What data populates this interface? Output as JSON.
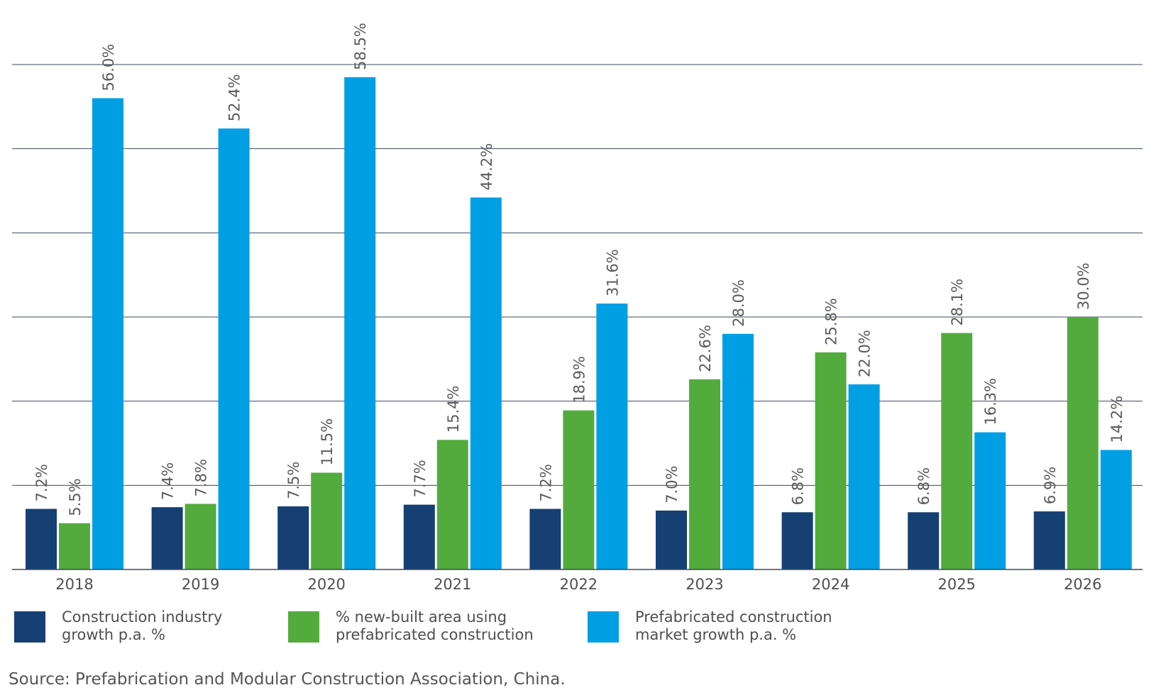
{
  "chart_data": {
    "type": "bar",
    "title": "",
    "xlabel": "",
    "ylabel": "",
    "ylim": [
      0,
      60
    ],
    "grid": true,
    "gridline_step": 10,
    "legend_position": "bottom",
    "categories": [
      "2018",
      "2019",
      "2020",
      "2021",
      "2022",
      "2023",
      "2024",
      "2025",
      "2026"
    ],
    "series": [
      {
        "name": "Construction industry growth p.a. %",
        "color": "#163f73",
        "values": [
          7.2,
          7.4,
          7.5,
          7.7,
          7.2,
          7.0,
          6.8,
          6.8,
          6.9
        ],
        "labels": [
          "7.2%",
          "7.4%",
          "7.5%",
          "7.7%",
          "7.2%",
          "7.0%",
          "6.8%",
          "6.8%",
          "6.9%"
        ]
      },
      {
        "name": "% new-built area using prefabricated construction",
        "color": "#54ab3d",
        "values": [
          5.5,
          7.8,
          11.5,
          15.4,
          18.9,
          22.6,
          25.8,
          28.1,
          30.0
        ],
        "labels": [
          "5.5%",
          "7.8%",
          "11.5%",
          "15.4%",
          "18.9%",
          "22.6%",
          "25.8%",
          "28.1%",
          "30.0%"
        ]
      },
      {
        "name": "Prefabricated construction market growth p.a. %",
        "color": "#009fe3",
        "values": [
          56.0,
          52.4,
          58.5,
          44.2,
          31.6,
          28.0,
          22.0,
          16.3,
          14.2
        ],
        "labels": [
          "56.0%",
          "52.4%",
          "58.5%",
          "44.2%",
          "31.6%",
          "28.0%",
          "22.0%",
          "16.3%",
          "14.2%"
        ]
      }
    ]
  },
  "legend": [
    {
      "label": "Construction industry\ngrowth p.a. %",
      "color": "#163f73"
    },
    {
      "label": "% new-built area using\nprefabricated construction",
      "color": "#54ab3d"
    },
    {
      "label": "Prefabricated construction\nmarket growth p.a. %",
      "color": "#009fe3"
    }
  ],
  "source": "Source: Prefabrication and Modular Construction Association, China."
}
